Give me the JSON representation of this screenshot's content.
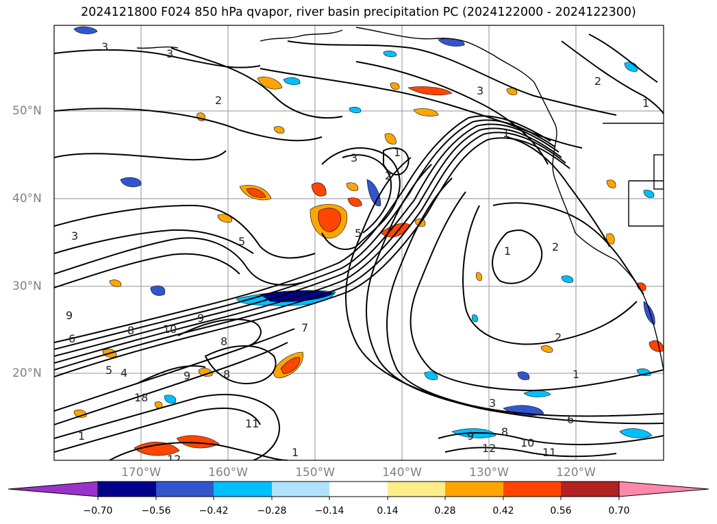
{
  "title": "2024121800 F024 850 hPa qvapor, river basin precipitation PC (2024122000 - 2024122300)",
  "map": {
    "lat_labels": [
      "50°N",
      "40°N",
      "30°N",
      "20°N"
    ],
    "lon_labels": [
      "170°W",
      "160°W",
      "150°W",
      "140°W",
      "130°W",
      "120°W"
    ],
    "contour_labels": [
      "3",
      "3",
      "2",
      "3",
      "1",
      "2",
      "3",
      "5",
      "2",
      "3",
      "1",
      "2",
      "1",
      "1",
      "2",
      "1",
      "5",
      "9",
      "10",
      "9",
      "8",
      "8",
      "6",
      "5",
      "4",
      "8",
      "9",
      "18",
      "11",
      "1",
      "12",
      "3",
      "8",
      "9",
      "12",
      "10",
      "11",
      "6",
      "1",
      "7"
    ],
    "colors": {
      "frame": "#000000",
      "grid": "#808080",
      "coast": "#000000"
    }
  },
  "colorbar": {
    "colors": [
      "#9933cc",
      "#00008b",
      "#3355cc",
      "#00bfff",
      "#b0e2ff",
      "#ffffff",
      "#ffec8b",
      "#ffa500",
      "#ff4500",
      "#b22222",
      "#ff88aa"
    ],
    "tick_labels": [
      "−0.70",
      "−0.56",
      "−0.42",
      "−0.28",
      "−0.14",
      "0.14",
      "0.28",
      "0.42",
      "0.56",
      "0.70"
    ]
  }
}
